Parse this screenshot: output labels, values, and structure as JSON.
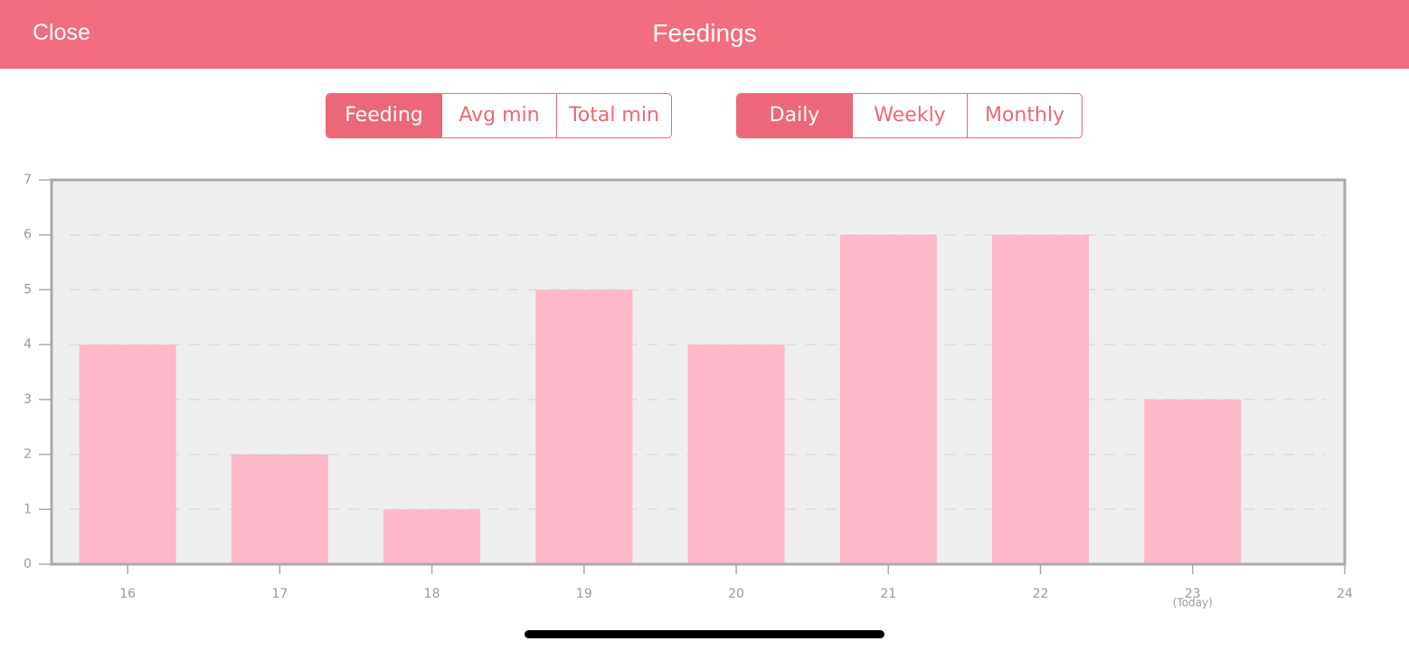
{
  "header": {
    "close": "Close",
    "title": "Feedings"
  },
  "metric_tabs": {
    "options": [
      "Feeding",
      "Avg min",
      "Total min"
    ],
    "selected": 0
  },
  "period_tabs": {
    "options": [
      "Daily",
      "Weekly",
      "Monthly"
    ],
    "selected": 0
  },
  "chart_data": {
    "type": "bar",
    "x": [
      16,
      17,
      18,
      19,
      20,
      21,
      22,
      23
    ],
    "values": [
      4,
      2,
      1,
      5,
      4,
      6,
      6,
      3
    ],
    "color": "#fdb8c9",
    "xlim": [
      15.5,
      24
    ],
    "xticks": [
      16,
      17,
      18,
      19,
      20,
      21,
      22,
      23,
      24
    ],
    "ylim": [
      0,
      7
    ],
    "yticks": [
      0,
      1,
      2,
      3,
      4,
      5,
      6,
      7
    ],
    "grid": true,
    "annotation": "(Today)"
  }
}
